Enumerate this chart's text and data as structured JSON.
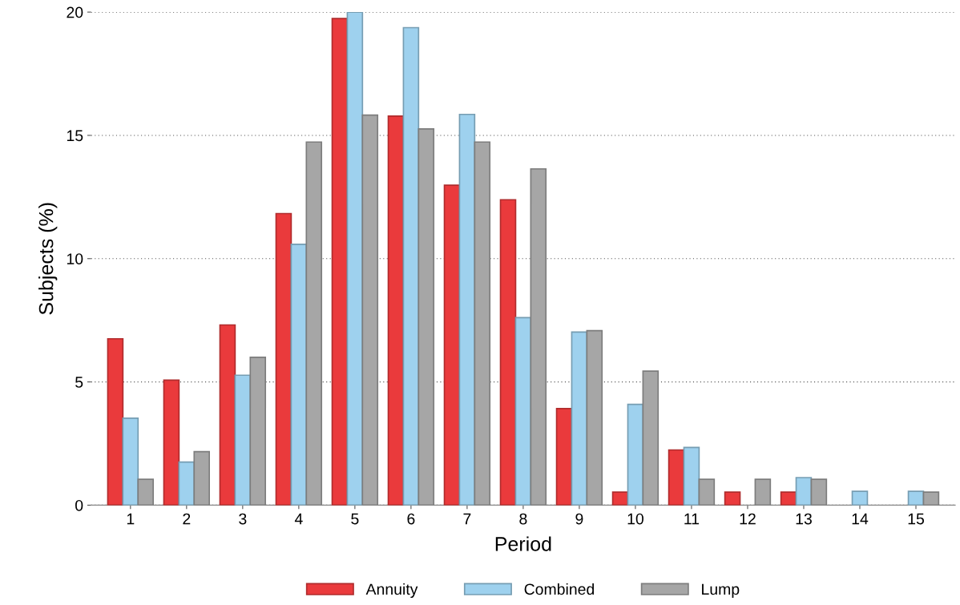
{
  "chart_data": {
    "type": "bar",
    "xlabel": "Period",
    "ylabel": "Subjects (%)",
    "categories": [
      "1",
      "2",
      "3",
      "4",
      "5",
      "6",
      "7",
      "8",
      "9",
      "10",
      "11",
      "12",
      "13",
      "14",
      "15"
    ],
    "series": [
      {
        "name": "Annuity",
        "color": "#ea3a3c",
        "values": [
          6.75,
          5.07,
          7.31,
          11.83,
          19.74,
          15.78,
          12.98,
          12.39,
          3.92,
          0.53,
          2.24,
          0.53,
          0.53,
          0,
          0
        ]
      },
      {
        "name": "Combined",
        "color": "#9ed1ee",
        "values": [
          3.53,
          1.75,
          5.27,
          10.58,
          20.0,
          19.37,
          15.85,
          7.61,
          7.02,
          4.09,
          2.34,
          0,
          1.12,
          0.56,
          0.56
        ]
      },
      {
        "name": "Lump",
        "color": "#a6a6a6",
        "values": [
          1.05,
          2.17,
          6.0,
          14.73,
          15.82,
          15.26,
          14.73,
          13.64,
          7.08,
          5.44,
          1.05,
          1.05,
          1.05,
          0,
          0.53
        ]
      }
    ],
    "ylim": [
      0,
      20
    ],
    "yticks": [
      0,
      5,
      10,
      15,
      20
    ],
    "grid": "y",
    "legend": "bottom"
  }
}
